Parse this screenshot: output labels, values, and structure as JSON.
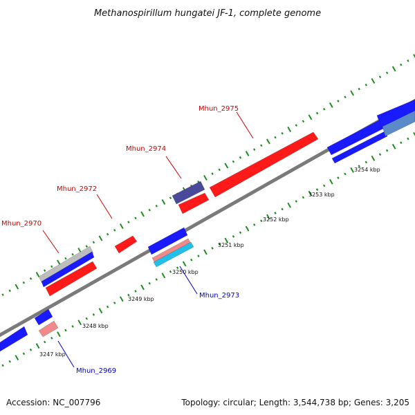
{
  "title": "Methanospirillum hungatei JF-1, complete genome",
  "footer": {
    "accession": "Accession: NC_007796",
    "summary": "Topology: circular; Length: 3,544,738 bp; Genes: 3,205"
  },
  "colors": {
    "backbone": "#7a7a7a",
    "tick": "#1e8c1e",
    "forward_gene": "#ff1a1a",
    "reverse_gene": "#1a1aff",
    "forward_label": "#cc0000",
    "reverse_label": "#0000cc",
    "other_gene": "#4a4a9a",
    "pseudo_gene": "#f08a8a",
    "light_gene": "#22c0e8",
    "rna_gene": "#5a8ac8",
    "grey_gene": "#bdbdbd"
  },
  "ticks": [
    {
      "label": "3247 kbp"
    },
    {
      "label": "3248 kbp"
    },
    {
      "label": "3249 kbp"
    },
    {
      "label": "3250 kbp"
    },
    {
      "label": "3251 kbp"
    },
    {
      "label": "3252 kbp"
    },
    {
      "label": "3253 kbp"
    },
    {
      "label": "3254 kbp"
    }
  ],
  "gene_labels": [
    {
      "name": "Mhun_2970",
      "strand": "forward"
    },
    {
      "name": "Mhun_2972",
      "strand": "forward"
    },
    {
      "name": "Mhun_2974",
      "strand": "forward"
    },
    {
      "name": "Mhun_2975",
      "strand": "forward"
    },
    {
      "name": "Mhun_2973",
      "strand": "reverse"
    },
    {
      "name": "Mhun_2969",
      "strand": "reverse"
    }
  ]
}
